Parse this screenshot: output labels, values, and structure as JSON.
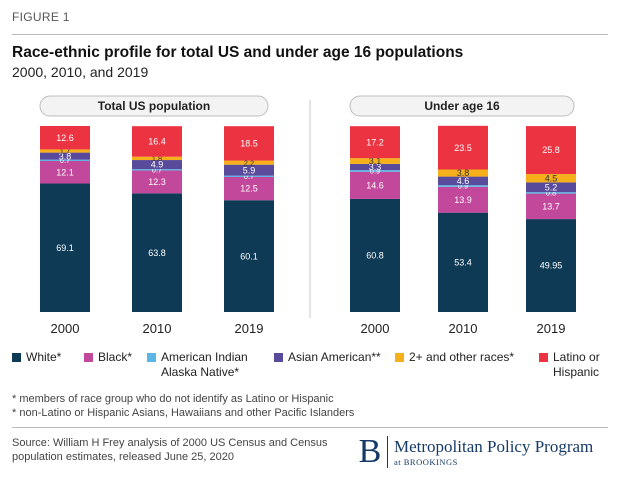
{
  "figure_label": "FIGURE 1",
  "title": "Race-ethnic profile for total US and under age 16 populations",
  "subtitle": "2000, 2010, and 2019",
  "legend": [
    {
      "label": "White*",
      "color": "#0f3a55"
    },
    {
      "label": "Black*",
      "color": "#c2489b"
    },
    {
      "label": "American Indian Alaska Native*",
      "color": "#5bb5e5"
    },
    {
      "label": "Asian American**",
      "color": "#5a4a9c"
    },
    {
      "label": "2+ and other races*",
      "color": "#f5b01c"
    },
    {
      "label": "Latino or Hispanic",
      "color": "#ec3341"
    }
  ],
  "notes": [
    "* members of race group who do not identify as Latino or Hispanic",
    "* non-Latino or Hispanic Asians, Hawaiians and other Pacific Islanders"
  ],
  "source": "Source: William H Frey analysis of 2000 US Census and Census population estimates, released June 25, 2020",
  "logo": {
    "mark": "B",
    "name": "Metropolitan Policy Program",
    "sub": "at BROOKINGS"
  },
  "chart_data": [
    {
      "type": "bar",
      "stacked": true,
      "title": "Total US population",
      "categories": [
        "2000",
        "2010",
        "2019"
      ],
      "series": [
        {
          "name": "White*",
          "values": [
            69.1,
            63.8,
            60.1
          ],
          "labels": [
            "69.1",
            "63.8",
            "60.1"
          ]
        },
        {
          "name": "Black*",
          "values": [
            12.1,
            12.3,
            12.5
          ],
          "labels": [
            "12.1",
            "12.3",
            "12.5"
          ]
        },
        {
          "name": "American Indian Alaska Native*",
          "values": [
            0.7,
            0.7,
            0.7
          ],
          "labels": [
            "0.7",
            "0.7",
            "0.7"
          ]
        },
        {
          "name": "Asian American**",
          "values": [
            3.8,
            4.9,
            5.9
          ],
          "labels": [
            "3.8",
            "4.9",
            "5.9"
          ]
        },
        {
          "name": "2+ and other races*",
          "values": [
            1.7,
            1.8,
            2.2
          ],
          "labels": [
            "1.7",
            "1.8",
            "2.2"
          ]
        },
        {
          "name": "Latino or Hispanic",
          "values": [
            12.6,
            16.4,
            18.5
          ],
          "labels": [
            "12.6",
            "16.4",
            "18.5"
          ]
        }
      ],
      "ylim": [
        0,
        100
      ]
    },
    {
      "type": "bar",
      "stacked": true,
      "title": "Under age 16",
      "categories": [
        "2000",
        "2010",
        "2019"
      ],
      "series": [
        {
          "name": "White*",
          "values": [
            60.8,
            53.4,
            49.95
          ],
          "labels": [
            "60.8",
            "53.4",
            "49.95"
          ]
        },
        {
          "name": "Black*",
          "values": [
            14.6,
            13.9,
            13.7
          ],
          "labels": [
            "14.6",
            "13.9",
            "13.7"
          ]
        },
        {
          "name": "American Indian Alaska Native*",
          "values": [
            0.9,
            0.9,
            0.8
          ],
          "labels": [
            "0.9",
            "0.9",
            "0.8"
          ]
        },
        {
          "name": "Asian American**",
          "values": [
            3.3,
            4.6,
            5.2
          ],
          "labels": [
            "3.3",
            "4.6",
            "5.2"
          ]
        },
        {
          "name": "2+ and other races*",
          "values": [
            3.1,
            3.8,
            4.5
          ],
          "labels": [
            "3.1",
            "3.8",
            "4.5"
          ]
        },
        {
          "name": "Latino or Hispanic",
          "values": [
            17.2,
            23.5,
            25.8
          ],
          "labels": [
            "17.2",
            "23.5",
            "25.8"
          ]
        }
      ],
      "ylim": [
        0,
        100
      ]
    }
  ]
}
